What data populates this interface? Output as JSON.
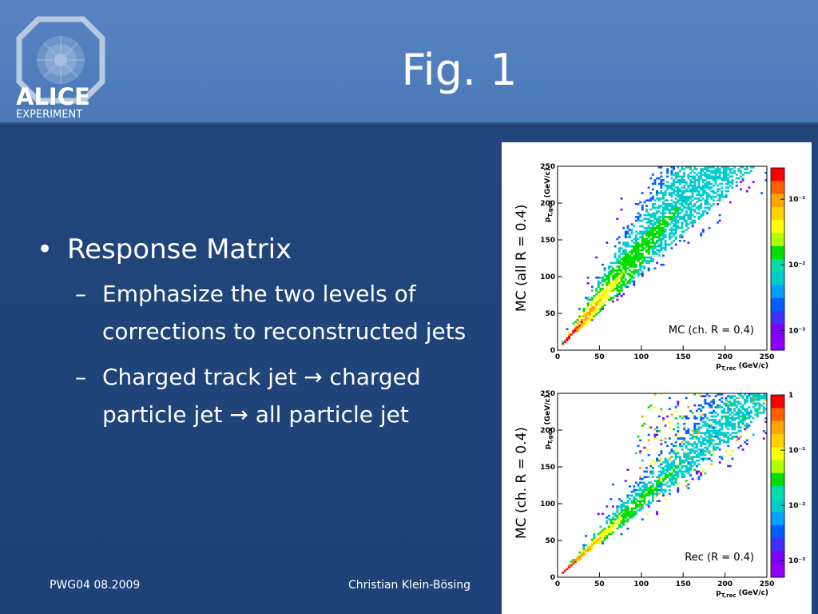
{
  "slide": {
    "title": "Fig. 1",
    "logo_text": {
      "name": "ALICE",
      "subtitle": "EXPERIMENT"
    },
    "bullets": [
      {
        "text": "Response Matrix",
        "level": 1
      },
      {
        "text": "Emphasize the two levels of corrections to reconstructed jets",
        "level": 2
      },
      {
        "text": "Charged track jet → charged particle jet → all particle jet",
        "level": 2
      }
    ],
    "footer": {
      "left": "PWG04 08.2009",
      "center": "Christian Klein-Bösing"
    }
  },
  "chart_data": [
    {
      "type": "heatmap",
      "ylabel_side": "MC (all R = 0.4)",
      "annotation": "MC (ch. R = 0.4)",
      "xlabel": "p_T,rec (GeV/c)",
      "ylabel": "p_T,gen (GeV/c)",
      "xlim": [
        0,
        250
      ],
      "ylim": [
        0,
        250
      ],
      "xticks": [
        0,
        50,
        100,
        150,
        200,
        250
      ],
      "yticks": [
        0,
        50,
        100,
        150,
        200,
        250
      ],
      "color_scale": "log",
      "colorbar_ticks": [
        "10⁻¹",
        "10⁻²",
        "10⁻³"
      ],
      "colorbar_range": [
        0.0005,
        0.3
      ],
      "ridge": {
        "y_over_x_low": 1.05,
        "y_over_x_high": 2.5,
        "peak_y_over_x": 1.35
      },
      "colors": [
        "#ff0000",
        "#ffa500",
        "#ffff00",
        "#00dd00",
        "#00cccc",
        "#0060ff",
        "#8000ff"
      ]
    },
    {
      "type": "heatmap",
      "ylabel_side": "MC (ch. R = 0.4)",
      "annotation": "Rec (R = 0.4)",
      "xlabel": "p_T,rec (GeV/c)",
      "ylabel": "p_T,gen (GeV/c)",
      "xlim": [
        0,
        250
      ],
      "ylim": [
        0,
        250
      ],
      "xticks": [
        0,
        50,
        100,
        150,
        200,
        250
      ],
      "yticks": [
        0,
        50,
        100,
        150,
        200,
        250
      ],
      "color_scale": "log",
      "colorbar_ticks": [
        "1",
        "10⁻¹",
        "10⁻²",
        "10⁻³"
      ],
      "colorbar_range": [
        0.0005,
        1.0
      ],
      "ridge": {
        "y_over_x_low": 0.9,
        "y_over_x_high": 1.6,
        "peak_y_over_x": 1.05
      },
      "colors": [
        "#ff0000",
        "#ffa500",
        "#ffff00",
        "#00dd00",
        "#00cccc",
        "#0060ff",
        "#8000ff"
      ]
    }
  ]
}
